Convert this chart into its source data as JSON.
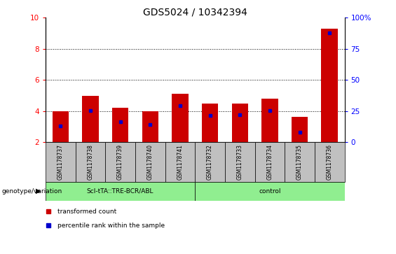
{
  "title": "GDS5024 / 10342394",
  "samples": [
    "GSM1178737",
    "GSM1178738",
    "GSM1178739",
    "GSM1178740",
    "GSM1178741",
    "GSM1178732",
    "GSM1178733",
    "GSM1178734",
    "GSM1178735",
    "GSM1178736"
  ],
  "red_values": [
    4.0,
    5.0,
    4.2,
    4.0,
    5.1,
    4.5,
    4.5,
    4.8,
    3.65,
    9.3
  ],
  "blue_values": [
    3.05,
    4.05,
    3.3,
    3.15,
    4.35,
    3.7,
    3.75,
    4.05,
    2.65,
    9.05
  ],
  "ymin": 2,
  "ymax": 10,
  "yticks_left": [
    2,
    4,
    6,
    8,
    10
  ],
  "y_right_labels": [
    "0",
    "25",
    "50",
    "75",
    "100%"
  ],
  "group1_label": "Scl-tTA::TRE-BCR/ABL",
  "group2_label": "control",
  "group_label": "genotype/variation",
  "legend_red": "transformed count",
  "legend_blue": "percentile rank within the sample",
  "bar_color": "#cc0000",
  "blue_color": "#0000cc",
  "bar_width": 0.55,
  "title_fontsize": 10,
  "tick_fontsize": 7.5,
  "sample_fontsize": 5.5,
  "group_bg_color": "#c0c0c0",
  "group_green_color": "#90EE90"
}
